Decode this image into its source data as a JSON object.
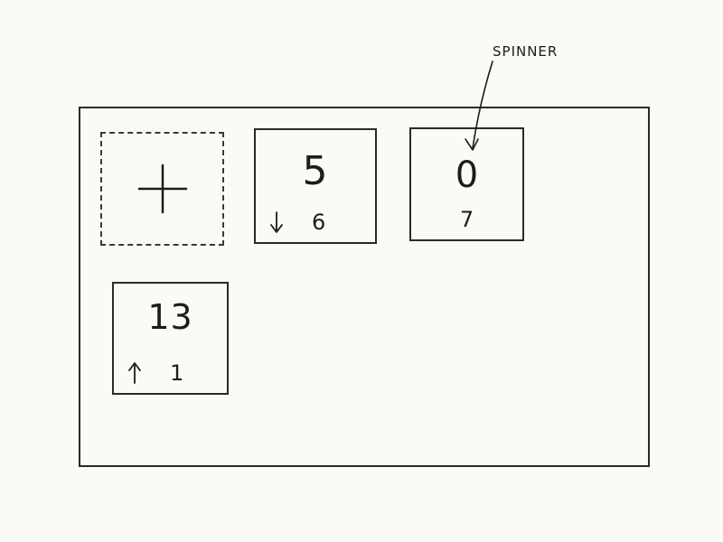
{
  "annotation": {
    "label": "SPINNER"
  },
  "cards": [
    {
      "value": "5",
      "trend_icon": "arrow-down-icon",
      "change": "6"
    },
    {
      "value": "0",
      "value_icon": "spinner-icon",
      "change": "7"
    },
    {
      "value": "13",
      "trend_icon": "arrow-up-icon",
      "change": "1"
    }
  ],
  "add_card": {
    "icon": "plus-icon"
  }
}
